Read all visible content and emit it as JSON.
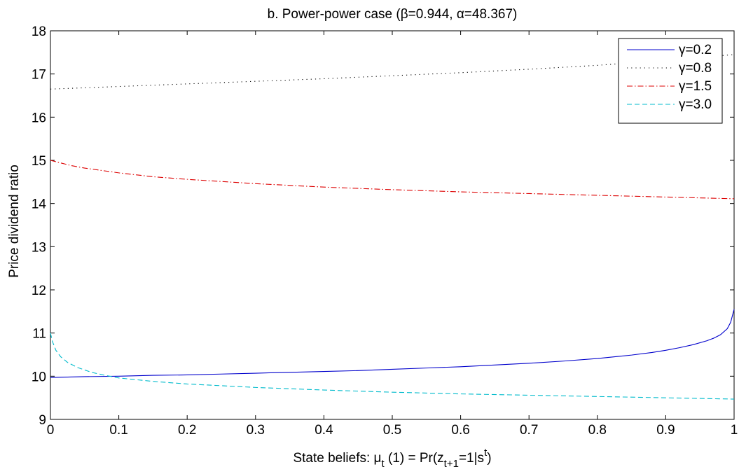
{
  "chart_data": {
    "type": "line",
    "title": "b. Power-power case (β=0.944, α=48.367)",
    "xlabel": {
      "prefix": "State beliefs: μ",
      "mu_sub": "t",
      "mid": " (1) = Pr(z",
      "z_sub": "t+1",
      "tail": "=1|s",
      "s_sup": "t",
      "close": ")"
    },
    "ylabel": "Price dividend ratio",
    "xlim": [
      0,
      1
    ],
    "ylim": [
      9,
      18
    ],
    "xticks": [
      "0",
      "0.1",
      "0.2",
      "0.3",
      "0.4",
      "0.5",
      "0.6",
      "0.7",
      "0.8",
      "0.9",
      "1"
    ],
    "yticks": [
      "9",
      "10",
      "11",
      "12",
      "13",
      "14",
      "15",
      "16",
      "17",
      "18"
    ],
    "grid": false,
    "legend_position": "top-right",
    "series": [
      {
        "name": "γ=0.2",
        "color": "#0000cc",
        "dash": "solid",
        "x": [
          0,
          0.05,
          0.1,
          0.15,
          0.2,
          0.25,
          0.3,
          0.35,
          0.4,
          0.45,
          0.5,
          0.55,
          0.6,
          0.65,
          0.7,
          0.75,
          0.8,
          0.85,
          0.88,
          0.9,
          0.92,
          0.94,
          0.96,
          0.97,
          0.98,
          0.99,
          0.995,
          1.0
        ],
        "values": [
          9.97,
          9.99,
          10.0,
          10.02,
          10.03,
          10.05,
          10.07,
          10.09,
          10.11,
          10.13,
          10.16,
          10.19,
          10.22,
          10.26,
          10.3,
          10.35,
          10.41,
          10.49,
          10.55,
          10.6,
          10.66,
          10.73,
          10.82,
          10.88,
          10.96,
          11.1,
          11.25,
          11.55
        ]
      },
      {
        "name": "γ=0.8",
        "color": "#000000",
        "dash": "dotted",
        "x": [
          0,
          0.1,
          0.2,
          0.3,
          0.4,
          0.5,
          0.6,
          0.7,
          0.8,
          0.9,
          1.0
        ],
        "values": [
          16.65,
          16.71,
          16.77,
          16.83,
          16.89,
          16.96,
          17.03,
          17.11,
          17.2,
          17.32,
          17.45
        ]
      },
      {
        "name": "γ=1.5",
        "color": "#dd0000",
        "dash": "dashdot",
        "x": [
          0,
          0.01,
          0.03,
          0.05,
          0.1,
          0.15,
          0.2,
          0.3,
          0.4,
          0.5,
          0.6,
          0.7,
          0.8,
          0.9,
          1.0
        ],
        "values": [
          15.0,
          14.96,
          14.88,
          14.82,
          14.71,
          14.62,
          14.56,
          14.46,
          14.38,
          14.32,
          14.27,
          14.23,
          14.19,
          14.15,
          14.11
        ]
      },
      {
        "name": "γ=3.0",
        "color": "#00bbcc",
        "dash": "dashed",
        "x": [
          0,
          0.003,
          0.008,
          0.015,
          0.025,
          0.04,
          0.06,
          0.08,
          0.1,
          0.15,
          0.2,
          0.3,
          0.4,
          0.5,
          0.6,
          0.7,
          0.8,
          0.9,
          1.0
        ],
        "values": [
          11.0,
          10.8,
          10.6,
          10.45,
          10.32,
          10.2,
          10.09,
          10.02,
          9.96,
          9.88,
          9.82,
          9.74,
          9.68,
          9.63,
          9.59,
          9.56,
          9.53,
          9.5,
          9.47
        ]
      }
    ]
  }
}
